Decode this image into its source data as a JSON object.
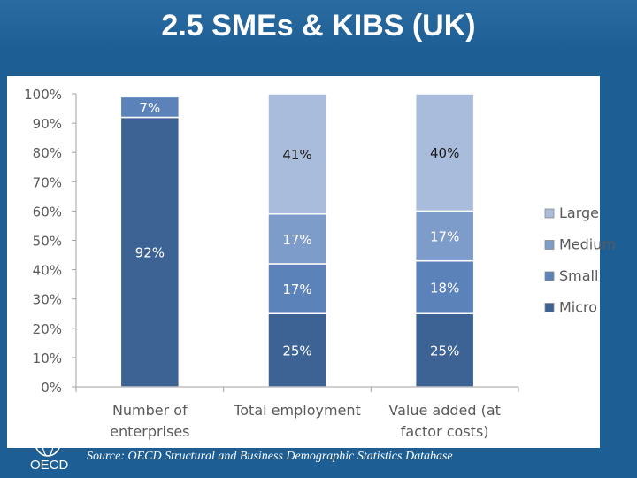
{
  "slide": {
    "title": "2.5 SMEs & KIBS (UK)",
    "source": "Source: OECD Structural and Business Demographic Statistics Database",
    "logo_text": "OECD"
  },
  "colors": {
    "background": "#1d5f95",
    "micro": "#3d6395",
    "small": "#5c82ba",
    "medium": "#7e9cc9",
    "large": "#a9bcdc"
  },
  "chart_data": {
    "type": "bar",
    "stacked": true,
    "categories": [
      [
        "Number of",
        "enterprises"
      ],
      [
        "Total employment"
      ],
      [
        "Value added (at",
        "factor costs)"
      ]
    ],
    "ylim": [
      0,
      100
    ],
    "yticks": [
      "0%",
      "10%",
      "20%",
      "30%",
      "40%",
      "50%",
      "60%",
      "70%",
      "80%",
      "90%",
      "100%"
    ],
    "series": [
      {
        "name": "Micro",
        "values": [
          92,
          25,
          25
        ],
        "labels": [
          "92%",
          "25%",
          "25%"
        ]
      },
      {
        "name": "Small",
        "values": [
          7,
          17,
          18
        ],
        "labels": [
          "7%",
          "17%",
          "18%"
        ]
      },
      {
        "name": "Medium",
        "values": [
          0.6,
          17,
          17
        ],
        "labels": [
          "",
          "17%",
          "17%"
        ]
      },
      {
        "name": "Large",
        "values": [
          0.4,
          41,
          40
        ],
        "labels": [
          "",
          "41%",
          "40%"
        ]
      }
    ],
    "legend": {
      "position": "right",
      "order": [
        "Large",
        "Medium",
        "Small",
        "Micro"
      ]
    },
    "grid": false
  }
}
